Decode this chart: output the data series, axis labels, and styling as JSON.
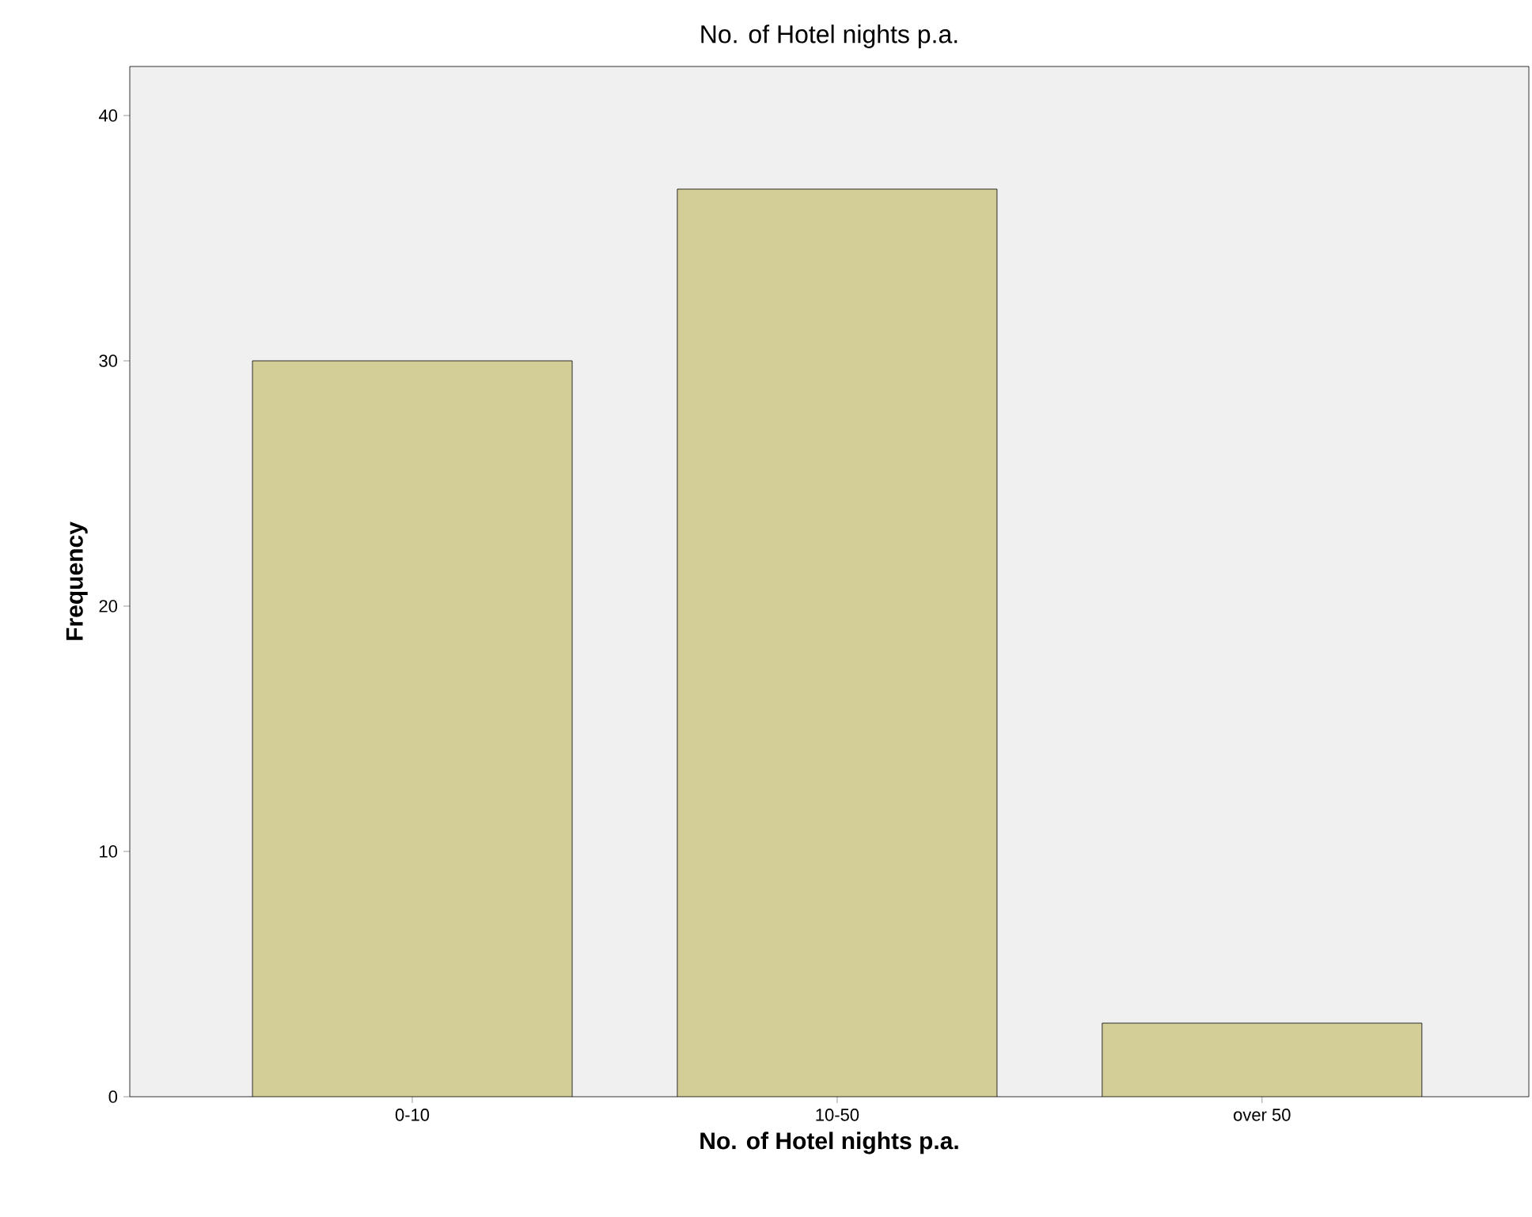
{
  "chart_data": {
    "type": "bar",
    "title": "No. of Hotel nights p.a.",
    "xlabel": "No. of Hotel nights p.a.",
    "ylabel": "Frequency",
    "categories": [
      "0-10",
      "10-50",
      "over 50"
    ],
    "values": [
      30,
      37,
      3
    ],
    "color": "#d3ce98",
    "ylim": [
      0,
      42
    ],
    "yticks": [
      0,
      10,
      20,
      30,
      40
    ]
  }
}
